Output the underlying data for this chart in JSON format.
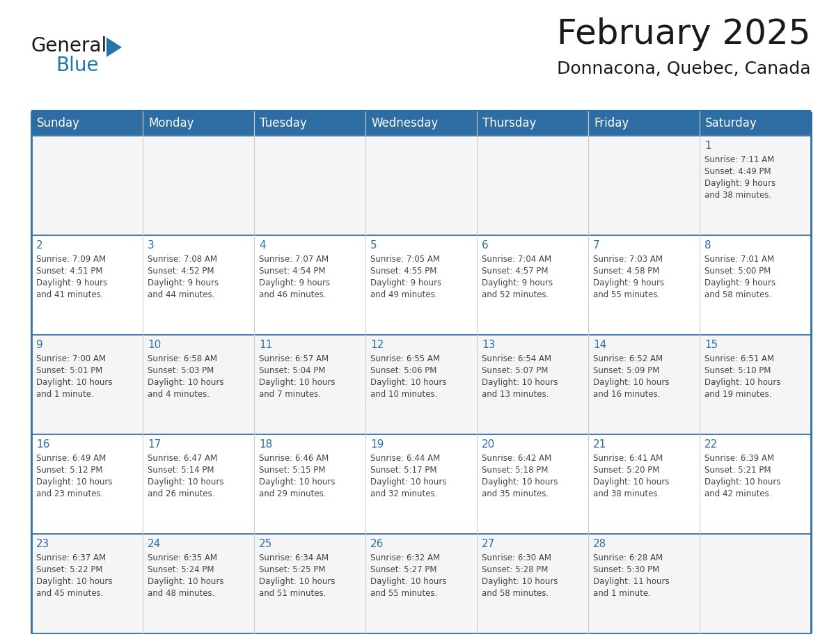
{
  "title": "February 2025",
  "subtitle": "Donnacona, Quebec, Canada",
  "header_bg_color": "#2E6DA4",
  "header_text_color": "#FFFFFF",
  "cell_bg_even": "#F5F5F5",
  "cell_bg_odd": "#FFFFFF",
  "border_color": "#2E6DA4",
  "row_line_color": "#4A7DAA",
  "col_line_color": "#CCCCCC",
  "text_color": "#444444",
  "day_number_color": "#2E6DA4",
  "days_of_week": [
    "Sunday",
    "Monday",
    "Tuesday",
    "Wednesday",
    "Thursday",
    "Friday",
    "Saturday"
  ],
  "weeks": [
    [
      {
        "day": "",
        "info": ""
      },
      {
        "day": "",
        "info": ""
      },
      {
        "day": "",
        "info": ""
      },
      {
        "day": "",
        "info": ""
      },
      {
        "day": "",
        "info": ""
      },
      {
        "day": "",
        "info": ""
      },
      {
        "day": "1",
        "info": "Sunrise: 7:11 AM\nSunset: 4:49 PM\nDaylight: 9 hours\nand 38 minutes."
      }
    ],
    [
      {
        "day": "2",
        "info": "Sunrise: 7:09 AM\nSunset: 4:51 PM\nDaylight: 9 hours\nand 41 minutes."
      },
      {
        "day": "3",
        "info": "Sunrise: 7:08 AM\nSunset: 4:52 PM\nDaylight: 9 hours\nand 44 minutes."
      },
      {
        "day": "4",
        "info": "Sunrise: 7:07 AM\nSunset: 4:54 PM\nDaylight: 9 hours\nand 46 minutes."
      },
      {
        "day": "5",
        "info": "Sunrise: 7:05 AM\nSunset: 4:55 PM\nDaylight: 9 hours\nand 49 minutes."
      },
      {
        "day": "6",
        "info": "Sunrise: 7:04 AM\nSunset: 4:57 PM\nDaylight: 9 hours\nand 52 minutes."
      },
      {
        "day": "7",
        "info": "Sunrise: 7:03 AM\nSunset: 4:58 PM\nDaylight: 9 hours\nand 55 minutes."
      },
      {
        "day": "8",
        "info": "Sunrise: 7:01 AM\nSunset: 5:00 PM\nDaylight: 9 hours\nand 58 minutes."
      }
    ],
    [
      {
        "day": "9",
        "info": "Sunrise: 7:00 AM\nSunset: 5:01 PM\nDaylight: 10 hours\nand 1 minute."
      },
      {
        "day": "10",
        "info": "Sunrise: 6:58 AM\nSunset: 5:03 PM\nDaylight: 10 hours\nand 4 minutes."
      },
      {
        "day": "11",
        "info": "Sunrise: 6:57 AM\nSunset: 5:04 PM\nDaylight: 10 hours\nand 7 minutes."
      },
      {
        "day": "12",
        "info": "Sunrise: 6:55 AM\nSunset: 5:06 PM\nDaylight: 10 hours\nand 10 minutes."
      },
      {
        "day": "13",
        "info": "Sunrise: 6:54 AM\nSunset: 5:07 PM\nDaylight: 10 hours\nand 13 minutes."
      },
      {
        "day": "14",
        "info": "Sunrise: 6:52 AM\nSunset: 5:09 PM\nDaylight: 10 hours\nand 16 minutes."
      },
      {
        "day": "15",
        "info": "Sunrise: 6:51 AM\nSunset: 5:10 PM\nDaylight: 10 hours\nand 19 minutes."
      }
    ],
    [
      {
        "day": "16",
        "info": "Sunrise: 6:49 AM\nSunset: 5:12 PM\nDaylight: 10 hours\nand 23 minutes."
      },
      {
        "day": "17",
        "info": "Sunrise: 6:47 AM\nSunset: 5:14 PM\nDaylight: 10 hours\nand 26 minutes."
      },
      {
        "day": "18",
        "info": "Sunrise: 6:46 AM\nSunset: 5:15 PM\nDaylight: 10 hours\nand 29 minutes."
      },
      {
        "day": "19",
        "info": "Sunrise: 6:44 AM\nSunset: 5:17 PM\nDaylight: 10 hours\nand 32 minutes."
      },
      {
        "day": "20",
        "info": "Sunrise: 6:42 AM\nSunset: 5:18 PM\nDaylight: 10 hours\nand 35 minutes."
      },
      {
        "day": "21",
        "info": "Sunrise: 6:41 AM\nSunset: 5:20 PM\nDaylight: 10 hours\nand 38 minutes."
      },
      {
        "day": "22",
        "info": "Sunrise: 6:39 AM\nSunset: 5:21 PM\nDaylight: 10 hours\nand 42 minutes."
      }
    ],
    [
      {
        "day": "23",
        "info": "Sunrise: 6:37 AM\nSunset: 5:22 PM\nDaylight: 10 hours\nand 45 minutes."
      },
      {
        "day": "24",
        "info": "Sunrise: 6:35 AM\nSunset: 5:24 PM\nDaylight: 10 hours\nand 48 minutes."
      },
      {
        "day": "25",
        "info": "Sunrise: 6:34 AM\nSunset: 5:25 PM\nDaylight: 10 hours\nand 51 minutes."
      },
      {
        "day": "26",
        "info": "Sunrise: 6:32 AM\nSunset: 5:27 PM\nDaylight: 10 hours\nand 55 minutes."
      },
      {
        "day": "27",
        "info": "Sunrise: 6:30 AM\nSunset: 5:28 PM\nDaylight: 10 hours\nand 58 minutes."
      },
      {
        "day": "28",
        "info": "Sunrise: 6:28 AM\nSunset: 5:30 PM\nDaylight: 11 hours\nand 1 minute."
      },
      {
        "day": "",
        "info": ""
      }
    ]
  ],
  "logo_text1": "General",
  "logo_text2": "Blue",
  "logo_color1": "#1a1a1a",
  "logo_color2": "#2176AE",
  "logo_triangle_color": "#2176AE",
  "title_fontsize": 36,
  "subtitle_fontsize": 18,
  "header_fontsize": 12,
  "day_num_fontsize": 11,
  "cell_fontsize": 8.5
}
